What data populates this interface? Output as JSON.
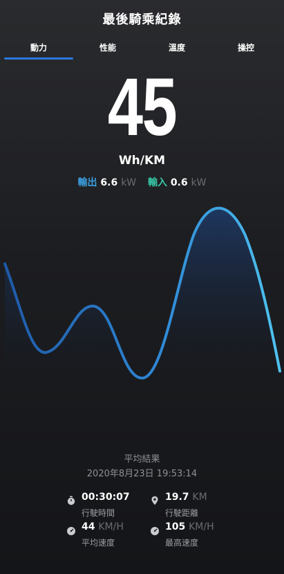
{
  "header": {
    "title": "最後騎乘紀錄"
  },
  "tabs": [
    {
      "label": "動力",
      "active": true
    },
    {
      "label": "性能",
      "active": false
    },
    {
      "label": "溫度",
      "active": false
    },
    {
      "label": "操控",
      "active": false
    }
  ],
  "main": {
    "value": "45",
    "unit": "Wh/KM",
    "output_label": "輸出",
    "output_value": "6.6",
    "output_unit": "kW",
    "input_label": "輸入",
    "input_value": "0.6",
    "input_unit": "kW"
  },
  "summary": {
    "title": "平均結果",
    "datetime": "2020年8月23日 19:53:14"
  },
  "stats": {
    "ride_time": {
      "value": "00:30:07",
      "unit": "",
      "label": "行駛時間",
      "icon": "stopwatch-icon"
    },
    "ride_distance": {
      "value": "19.7",
      "unit": "KM",
      "label": "行駛距離",
      "icon": "location-pin-icon"
    },
    "avg_speed": {
      "value": "44",
      "unit": "KM/H",
      "label": "平均速度",
      "icon": "speedometer-icon"
    },
    "max_speed": {
      "value": "105",
      "unit": "KM/H",
      "label": "最高速度",
      "icon": "speedometer-icon"
    }
  },
  "colors": {
    "accent": "#2a7be0",
    "output": "#3b9fe0",
    "input": "#37c7a6",
    "curve_start": "#1f5aa8",
    "curve_end": "#4fc3f0"
  }
}
